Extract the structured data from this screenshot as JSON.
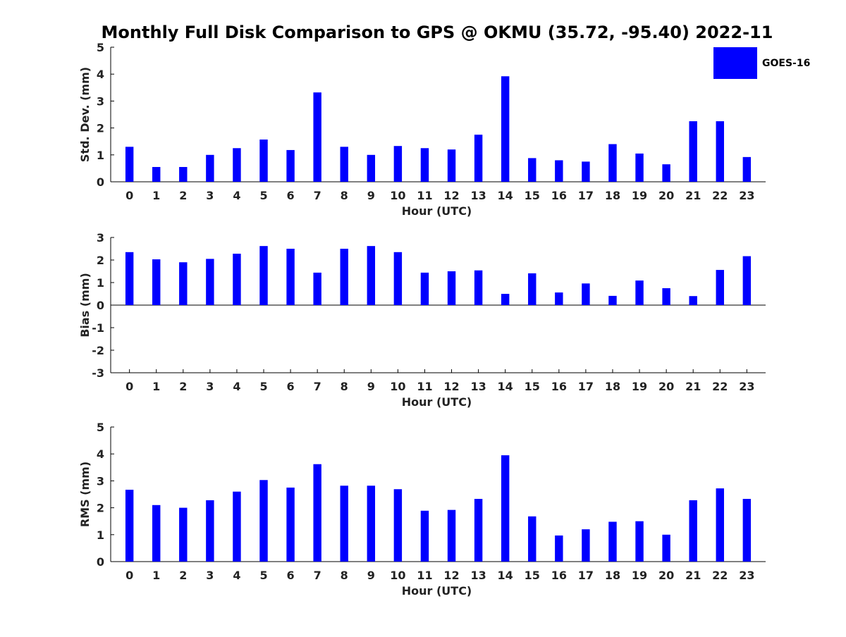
{
  "title": "Monthly Full Disk Comparison to GPS @ OKMU (35.72, -95.40) 2022-11",
  "legend": {
    "label": "GOES-16",
    "color": "#0000ff",
    "placement": "top-right"
  },
  "chart_data": [
    {
      "type": "bar",
      "ylabel": "Std. Dev. (mm)",
      "xlabel": "Hour (UTC)",
      "ylim": [
        0,
        5
      ],
      "yticks": [
        0,
        1,
        2,
        3,
        4,
        5
      ],
      "categories": [
        "0",
        "1",
        "2",
        "3",
        "4",
        "5",
        "6",
        "7",
        "8",
        "9",
        "10",
        "11",
        "12",
        "13",
        "14",
        "15",
        "16",
        "17",
        "18",
        "19",
        "20",
        "21",
        "22",
        "23"
      ],
      "series": [
        {
          "name": "GOES-16",
          "color": "#0000ff",
          "values": [
            1.3,
            0.55,
            0.55,
            1.0,
            1.25,
            1.57,
            1.18,
            3.32,
            1.3,
            1.0,
            1.33,
            1.25,
            1.2,
            1.75,
            3.92,
            0.88,
            0.8,
            0.75,
            1.4,
            1.05,
            0.65,
            2.25,
            2.25,
            0.92
          ]
        }
      ]
    },
    {
      "type": "bar",
      "ylabel": "Bias (mm)",
      "xlabel": "Hour (UTC)",
      "ylim": [
        -3,
        3
      ],
      "yticks": [
        -3,
        -2,
        -1,
        0,
        1,
        2,
        3
      ],
      "categories": [
        "0",
        "1",
        "2",
        "3",
        "4",
        "5",
        "6",
        "7",
        "8",
        "9",
        "10",
        "11",
        "12",
        "13",
        "14",
        "15",
        "16",
        "17",
        "18",
        "19",
        "20",
        "21",
        "22",
        "23"
      ],
      "series": [
        {
          "name": "GOES-16",
          "color": "#0000ff",
          "values": [
            2.35,
            2.03,
            1.9,
            2.05,
            2.28,
            2.62,
            2.5,
            1.44,
            2.5,
            2.62,
            2.35,
            1.44,
            1.5,
            1.54,
            0.5,
            1.41,
            0.56,
            0.96,
            0.41,
            1.09,
            0.75,
            0.4,
            1.56,
            2.17
          ]
        }
      ]
    },
    {
      "type": "bar",
      "ylabel": "RMS (mm)",
      "xlabel": "Hour (UTC)",
      "ylim": [
        0,
        5
      ],
      "yticks": [
        0,
        1,
        2,
        3,
        4,
        5
      ],
      "categories": [
        "0",
        "1",
        "2",
        "3",
        "4",
        "5",
        "6",
        "7",
        "8",
        "9",
        "10",
        "11",
        "12",
        "13",
        "14",
        "15",
        "16",
        "17",
        "18",
        "19",
        "20",
        "21",
        "22",
        "23"
      ],
      "series": [
        {
          "name": "GOES-16",
          "color": "#0000ff",
          "values": [
            2.67,
            2.1,
            2.0,
            2.28,
            2.6,
            3.03,
            2.75,
            3.62,
            2.82,
            2.82,
            2.69,
            1.89,
            1.92,
            2.33,
            3.95,
            1.68,
            0.97,
            1.2,
            1.48,
            1.5,
            1.0,
            2.28,
            2.72,
            2.33
          ]
        }
      ]
    }
  ]
}
